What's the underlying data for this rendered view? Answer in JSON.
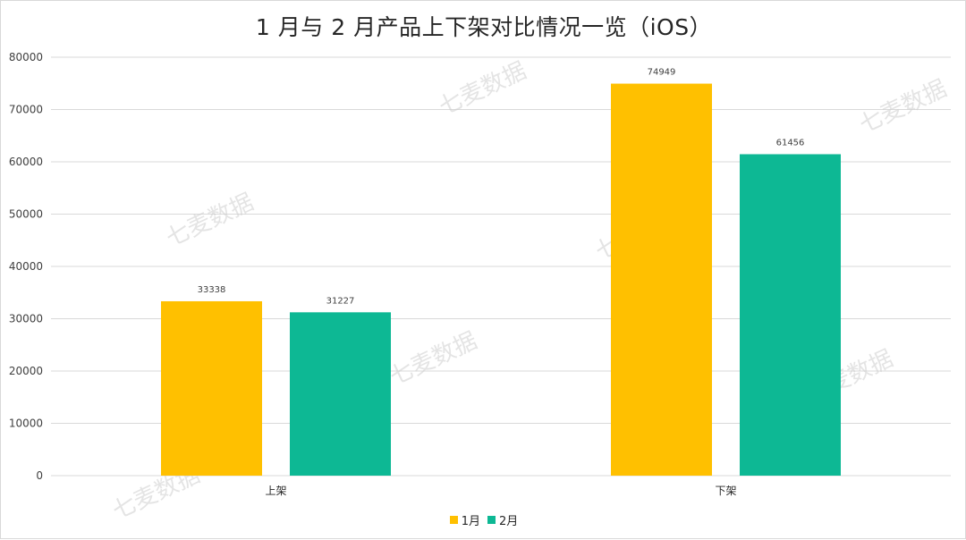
{
  "chart_data": {
    "type": "bar",
    "title": "1 月与 2 月产品上下架对比情况一览（iOS）",
    "categories": [
      "上架",
      "下架"
    ],
    "series": [
      {
        "name": "1月",
        "values": [
          33338,
          74949
        ],
        "color": "#FFC000"
      },
      {
        "name": "2月",
        "values": [
          31227,
          61456
        ],
        "color": "#0DB894"
      }
    ],
    "ylim": [
      0,
      80000
    ],
    "yticks": [
      0,
      10000,
      20000,
      30000,
      40000,
      50000,
      60000,
      70000,
      80000
    ],
    "grid": true,
    "legend_position": "bottom",
    "data_labels": true
  },
  "watermark": "七麦数据"
}
